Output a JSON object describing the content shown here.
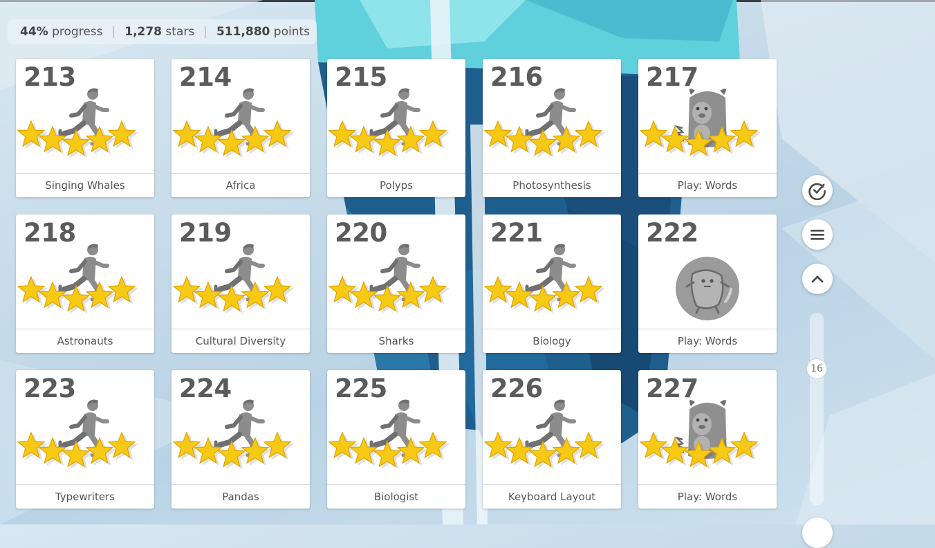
{
  "stats": {
    "progress_value": "44%",
    "progress_label": "progress",
    "stars_value": "1,278",
    "stars_label": "stars",
    "points_value": "511,880",
    "points_label": "points",
    "separator": "|"
  },
  "lessons": [
    {
      "number": "213",
      "title": "Singing Whales",
      "icon": "runner-icon",
      "stars": 5
    },
    {
      "number": "214",
      "title": "Africa",
      "icon": "runner-icon",
      "stars": 5
    },
    {
      "number": "215",
      "title": "Polyps",
      "icon": "runner-icon",
      "stars": 5
    },
    {
      "number": "216",
      "title": "Photosynthesis",
      "icon": "runner-icon",
      "stars": 5
    },
    {
      "number": "217",
      "title": "Play: Words",
      "icon": "monster-icon",
      "stars": 5
    },
    {
      "number": "218",
      "title": "Astronauts",
      "icon": "runner-icon",
      "stars": 5
    },
    {
      "number": "219",
      "title": "Cultural Diversity",
      "icon": "runner-icon",
      "stars": 5
    },
    {
      "number": "220",
      "title": "Sharks",
      "icon": "runner-icon",
      "stars": 5
    },
    {
      "number": "221",
      "title": "Biology",
      "icon": "runner-icon",
      "stars": 5
    },
    {
      "number": "222",
      "title": "Play: Words",
      "icon": "locked-monster-icon",
      "stars": 0
    },
    {
      "number": "223",
      "title": "Typewriters",
      "icon": "runner-icon",
      "stars": 5
    },
    {
      "number": "224",
      "title": "Pandas",
      "icon": "runner-icon",
      "stars": 5
    },
    {
      "number": "225",
      "title": "Biologist",
      "icon": "runner-icon",
      "stars": 5
    },
    {
      "number": "226",
      "title": "Keyboard Layout",
      "icon": "runner-icon",
      "stars": 5
    },
    {
      "number": "227",
      "title": "Play: Words",
      "icon": "monster-icon",
      "stars": 5
    }
  ],
  "sidebar": {
    "buttons": [
      {
        "name": "check-button",
        "icon": "check-circle-icon"
      },
      {
        "name": "menu-button",
        "icon": "hamburger-icon"
      },
      {
        "name": "scroll-up-button",
        "icon": "chevron-up-icon"
      }
    ],
    "slider_value": "16"
  },
  "colors": {
    "star_fill": "#f6c915",
    "star_shade": "#e0a400",
    "figure_gray": "#8c8c8c",
    "number_text": "#5b5b5b"
  }
}
